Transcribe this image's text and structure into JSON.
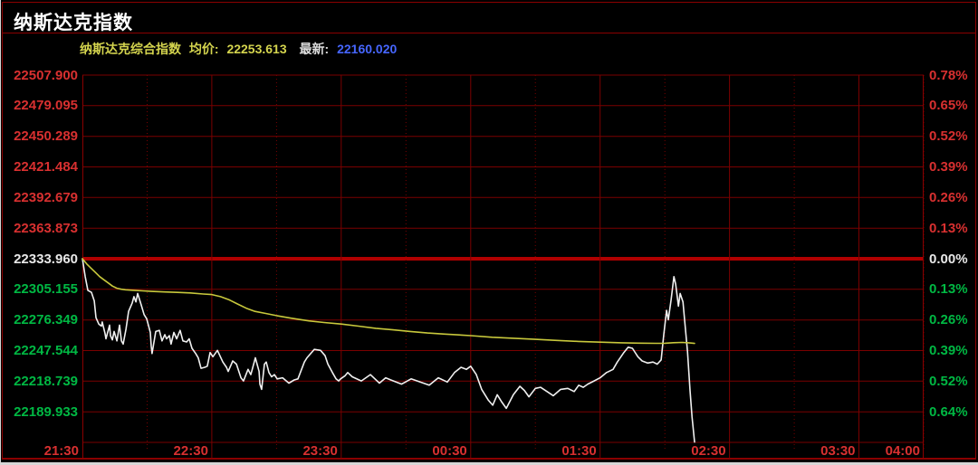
{
  "window": {
    "title": "纳斯达克指数"
  },
  "legend": {
    "index_name": "纳斯达克综合指数",
    "avg_label": "均价:",
    "avg_value": "22253.613",
    "last_label": "最新:",
    "last_value": "22160.020"
  },
  "chart_data": {
    "type": "line",
    "title": "纳斯达克指数",
    "instrument": "纳斯达克综合指数",
    "prev_close": 22333.96,
    "avg_price": 22253.613,
    "last_price": 22160.02,
    "x_axis": {
      "start": "21:30",
      "end": "04:00",
      "minutes_total": 390,
      "ticks": [
        {
          "t": 0,
          "label": "21:30"
        },
        {
          "t": 60,
          "label": "22:30"
        },
        {
          "t": 120,
          "label": "23:30"
        },
        {
          "t": 180,
          "label": "00:30"
        },
        {
          "t": 240,
          "label": "01:30"
        },
        {
          "t": 300,
          "label": "02:30"
        },
        {
          "t": 360,
          "label": "03:30"
        },
        {
          "t": 390,
          "label": "04:00"
        }
      ]
    },
    "y_axis": {
      "pct_max": 0.78,
      "pct_min": -0.78,
      "pct_step": 0.13,
      "left_labels": [
        {
          "text": "22507.900",
          "tone": "up"
        },
        {
          "text": "22479.095",
          "tone": "up"
        },
        {
          "text": "22450.289",
          "tone": "up"
        },
        {
          "text": "22421.484",
          "tone": "up"
        },
        {
          "text": "22392.679",
          "tone": "up"
        },
        {
          "text": "22363.873",
          "tone": "up"
        },
        {
          "text": "22333.960",
          "tone": "flat"
        },
        {
          "text": "22305.155",
          "tone": "down"
        },
        {
          "text": "22276.349",
          "tone": "down"
        },
        {
          "text": "22247.544",
          "tone": "down"
        },
        {
          "text": "22218.739",
          "tone": "down"
        },
        {
          "text": "22189.933",
          "tone": "down"
        }
      ],
      "right_labels": [
        {
          "text": "0.78%",
          "tone": "up"
        },
        {
          "text": "0.65%",
          "tone": "up"
        },
        {
          "text": "0.52%",
          "tone": "up"
        },
        {
          "text": "0.39%",
          "tone": "up"
        },
        {
          "text": "0.26%",
          "tone": "up"
        },
        {
          "text": "0.13%",
          "tone": "up"
        },
        {
          "text": "0.00%",
          "tone": "flat"
        },
        {
          "text": "0.13%",
          "tone": "down"
        },
        {
          "text": "0.26%",
          "tone": "down"
        },
        {
          "text": "0.39%",
          "tone": "down"
        },
        {
          "text": "0.52%",
          "tone": "down"
        },
        {
          "text": "0.64%",
          "tone": "down"
        }
      ]
    },
    "gridlines": {
      "hour_ts": [
        60,
        120,
        180,
        240,
        300,
        360
      ],
      "half_hour_ts": [
        30,
        90,
        150,
        210,
        270,
        330,
        390
      ]
    },
    "colors": {
      "grid": "#7a0000",
      "zero_line": "#b00000",
      "border": "#8b0000",
      "up": "#d83030",
      "down": "#00b843",
      "flat": "#e8e8e8",
      "price_line": "#f0f0f0",
      "avg_line": "#c8c83c",
      "last_value_blue": "#4666ff"
    },
    "series": [
      {
        "name": "price",
        "color": "#f0f0f0",
        "points": [
          [
            0,
            22334
          ],
          [
            1.3,
            22317
          ],
          [
            2.5,
            22304
          ],
          [
            4.2,
            22302
          ],
          [
            5.5,
            22294
          ],
          [
            6.3,
            22278
          ],
          [
            7.6,
            22272
          ],
          [
            8.8,
            22270
          ],
          [
            9.2,
            22274
          ],
          [
            10.5,
            22263
          ],
          [
            10.9,
            22258
          ],
          [
            12.6,
            22271
          ],
          [
            13,
            22261
          ],
          [
            13.9,
            22257
          ],
          [
            14.7,
            22265
          ],
          [
            16,
            22256
          ],
          [
            17.2,
            22271
          ],
          [
            18.1,
            22256
          ],
          [
            18.9,
            22253
          ],
          [
            20.2,
            22267
          ],
          [
            21.4,
            22284
          ],
          [
            23.1,
            22292
          ],
          [
            23.9,
            22298
          ],
          [
            24.8,
            22293
          ],
          [
            25.6,
            22301
          ],
          [
            27.3,
            22290
          ],
          [
            28.6,
            22281
          ],
          [
            29.8,
            22277
          ],
          [
            31.5,
            22264
          ],
          [
            31.9,
            22251
          ],
          [
            32.3,
            22244
          ],
          [
            34,
            22265
          ],
          [
            35.7,
            22266
          ],
          [
            36.9,
            22256
          ],
          [
            38.2,
            22262
          ],
          [
            39,
            22258
          ],
          [
            40.3,
            22261
          ],
          [
            41.1,
            22253
          ],
          [
            42.4,
            22264
          ],
          [
            43.7,
            22258
          ],
          [
            45.3,
            22266
          ],
          [
            46.6,
            22256
          ],
          [
            48.3,
            22255
          ],
          [
            49.5,
            22258
          ],
          [
            50.8,
            22249
          ],
          [
            52.5,
            22244
          ],
          [
            53.7,
            22240
          ],
          [
            55,
            22230
          ],
          [
            56.7,
            22231
          ],
          [
            57.9,
            22232
          ],
          [
            59.2,
            22245
          ],
          [
            60.5,
            22241
          ],
          [
            62.6,
            22247
          ],
          [
            65.1,
            22236
          ],
          [
            66.8,
            22231
          ],
          [
            67.6,
            22227
          ],
          [
            69.7,
            22237
          ],
          [
            71.4,
            22234
          ],
          [
            73.5,
            22221
          ],
          [
            74.7,
            22218
          ],
          [
            76.8,
            22229
          ],
          [
            78.1,
            22224
          ],
          [
            80.2,
            22240
          ],
          [
            81.9,
            22227
          ],
          [
            82.3,
            22215
          ],
          [
            83.1,
            22210
          ],
          [
            84.4,
            22234
          ],
          [
            85.2,
            22236
          ],
          [
            86.5,
            22226
          ],
          [
            87.7,
            22222
          ],
          [
            89,
            22224
          ],
          [
            90.3,
            22220
          ],
          [
            92.8,
            22221
          ],
          [
            95.7,
            22216
          ],
          [
            98.2,
            22219
          ],
          [
            99.9,
            22220
          ],
          [
            102.9,
            22236
          ],
          [
            104.1,
            22240
          ],
          [
            107.5,
            22248
          ],
          [
            110.4,
            22247
          ],
          [
            112.5,
            22242
          ],
          [
            113.8,
            22234
          ],
          [
            115.9,
            22226
          ],
          [
            117.6,
            22220
          ],
          [
            118.8,
            22218
          ],
          [
            119.7,
            22220
          ],
          [
            121.8,
            22223
          ],
          [
            123,
            22226
          ],
          [
            125.1,
            22222
          ],
          [
            129.3,
            22218
          ],
          [
            133.5,
            22224
          ],
          [
            137.7,
            22216
          ],
          [
            140.6,
            22221
          ],
          [
            143,
            22219
          ],
          [
            148,
            22215
          ],
          [
            152.4,
            22220
          ],
          [
            156.6,
            22217
          ],
          [
            160.8,
            22214
          ],
          [
            165,
            22221
          ],
          [
            169.2,
            22217
          ],
          [
            172.5,
            22226
          ],
          [
            175.5,
            22231
          ],
          [
            178,
            22229
          ],
          [
            180,
            22232
          ],
          [
            182.6,
            22224
          ],
          [
            185.1,
            22210
          ],
          [
            188.1,
            22200
          ],
          [
            190.2,
            22195
          ],
          [
            192.3,
            22205
          ],
          [
            194.4,
            22198
          ],
          [
            196.5,
            22192
          ],
          [
            199.8,
            22205
          ],
          [
            202.8,
            22213
          ],
          [
            204.9,
            22209
          ],
          [
            207,
            22203
          ],
          [
            210,
            22211
          ],
          [
            212.4,
            22212
          ],
          [
            215.4,
            22208
          ],
          [
            218.3,
            22204
          ],
          [
            221.7,
            22210
          ],
          [
            225,
            22211
          ],
          [
            228,
            22208
          ],
          [
            230.1,
            22214
          ],
          [
            232.2,
            22212
          ],
          [
            234.3,
            22215
          ],
          [
            237.2,
            22218
          ],
          [
            240,
            22221
          ],
          [
            243,
            22226
          ],
          [
            246,
            22229
          ],
          [
            248,
            22236
          ],
          [
            251,
            22245
          ],
          [
            253,
            22250
          ],
          [
            255,
            22249
          ],
          [
            257.5,
            22241
          ],
          [
            259.5,
            22237
          ],
          [
            262,
            22235
          ],
          [
            264.5,
            22236
          ],
          [
            266.5,
            22234
          ],
          [
            268.3,
            22238
          ],
          [
            269.5,
            22262
          ],
          [
            270.8,
            22285
          ],
          [
            271.6,
            22276
          ],
          [
            272.9,
            22295
          ],
          [
            274.2,
            22317
          ],
          [
            275,
            22310
          ],
          [
            276.3,
            22289
          ],
          [
            277.1,
            22301
          ],
          [
            278.4,
            22293
          ],
          [
            279.2,
            22275
          ],
          [
            280.5,
            22246
          ],
          [
            281.7,
            22209
          ],
          [
            282.6,
            22184
          ],
          [
            283.8,
            22160.02
          ]
        ]
      },
      {
        "name": "avg_price",
        "color": "#c8c83c",
        "points": [
          [
            0,
            22334
          ],
          [
            2,
            22329
          ],
          [
            4,
            22325
          ],
          [
            6,
            22321
          ],
          [
            8,
            22317
          ],
          [
            10,
            22314
          ],
          [
            12,
            22311
          ],
          [
            14,
            22308
          ],
          [
            16,
            22306
          ],
          [
            18,
            22305
          ],
          [
            20,
            22304.5
          ],
          [
            24,
            22304
          ],
          [
            28,
            22303.5
          ],
          [
            32,
            22303
          ],
          [
            38,
            22302.5
          ],
          [
            44,
            22302
          ],
          [
            50,
            22301.5
          ],
          [
            56,
            22300.5
          ],
          [
            60,
            22300
          ],
          [
            64,
            22298
          ],
          [
            68,
            22295
          ],
          [
            72,
            22291
          ],
          [
            76,
            22287
          ],
          [
            80,
            22284
          ],
          [
            85,
            22282
          ],
          [
            90,
            22280
          ],
          [
            97,
            22277.5
          ],
          [
            105,
            22275
          ],
          [
            112,
            22273.5
          ],
          [
            120,
            22272
          ],
          [
            128,
            22270
          ],
          [
            136,
            22268
          ],
          [
            144,
            22266.5
          ],
          [
            152,
            22265
          ],
          [
            160,
            22263.5
          ],
          [
            168,
            22262.5
          ],
          [
            176,
            22261.5
          ],
          [
            180,
            22261
          ],
          [
            190,
            22259.5
          ],
          [
            200,
            22258.5
          ],
          [
            210,
            22257.5
          ],
          [
            220,
            22256.5
          ],
          [
            230,
            22255.5
          ],
          [
            240,
            22254.8
          ],
          [
            250,
            22254.2
          ],
          [
            258,
            22253.9
          ],
          [
            266,
            22253.7
          ],
          [
            270,
            22253.8
          ],
          [
            274,
            22254.3
          ],
          [
            278,
            22254.6
          ],
          [
            281,
            22254.2
          ],
          [
            283.8,
            22253.6
          ]
        ]
      }
    ]
  }
}
